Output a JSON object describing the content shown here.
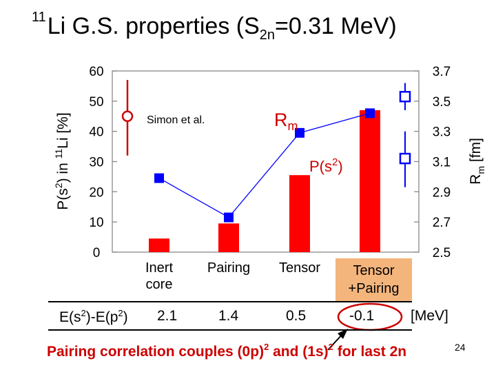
{
  "title": {
    "sup": "11",
    "main": "Li G.S. properties  (S",
    "sub": "2n",
    "tail": "=0.31 MeV)"
  },
  "colors": {
    "bar": "#ff0000",
    "marker": "#0000ff",
    "highlight": "#f4b57d"
  },
  "chart_data": {
    "type": "bar",
    "categories": [
      "Inert core",
      "Pairing",
      "Tensor",
      "Tensor +Pairing"
    ],
    "series": [
      {
        "name": "P(s2)",
        "values": [
          4.5,
          9.5,
          25.5,
          47
        ],
        "axis": "left"
      },
      {
        "name": "Rm",
        "values": [
          2.99,
          2.73,
          3.29,
          3.42
        ],
        "axis": "right",
        "style": "line-markers"
      }
    ],
    "left_axis": {
      "label_parts": [
        "P(s",
        "2",
        ") in ",
        "11",
        "Li [%]"
      ],
      "ylim": [
        0,
        60
      ],
      "ticks": [
        0,
        10,
        20,
        30,
        40,
        50,
        60
      ]
    },
    "right_axis": {
      "label_parts": [
        "R",
        "m",
        " [fm]"
      ],
      "ylim": [
        2.5,
        3.7
      ],
      "ticks": [
        "2.5",
        "2.7",
        "2.9",
        "3.1",
        "3.3",
        "3.5",
        "3.7"
      ]
    },
    "experiment": {
      "label": "Simon et al.",
      "p_s2": {
        "value": 45,
        "low": 32,
        "high": 57
      },
      "rm": [
        {
          "value": 3.53,
          "low": 3.44,
          "high": 3.62
        },
        {
          "value": 3.12,
          "low": 2.93,
          "high": 3.3
        }
      ]
    },
    "annotations": {
      "rm": {
        "main": "R",
        "sub": "m"
      },
      "ps2": {
        "main": "P(s",
        "sup": "2",
        "tail": ")"
      }
    },
    "category_labels": [
      [
        "Inert",
        "core"
      ],
      [
        "Pairing"
      ],
      [
        "Tensor"
      ],
      [
        "Tensor",
        "+Pairing"
      ]
    ]
  },
  "energy": {
    "label_main": "E(s",
    "sup1": "2",
    "label_mid": ")-E(p",
    "sup2": "2",
    "label_end": ")",
    "values": [
      "2.1",
      "1.4",
      "0.5",
      "-0.1"
    ],
    "unit": "[MeV]"
  },
  "footnote": {
    "part1": "Pairing correlation couples (0p)",
    "sup1": "2",
    "part2": " and (1s)",
    "sup2": "2",
    "part3": " for last 2n"
  },
  "page_number": "24"
}
